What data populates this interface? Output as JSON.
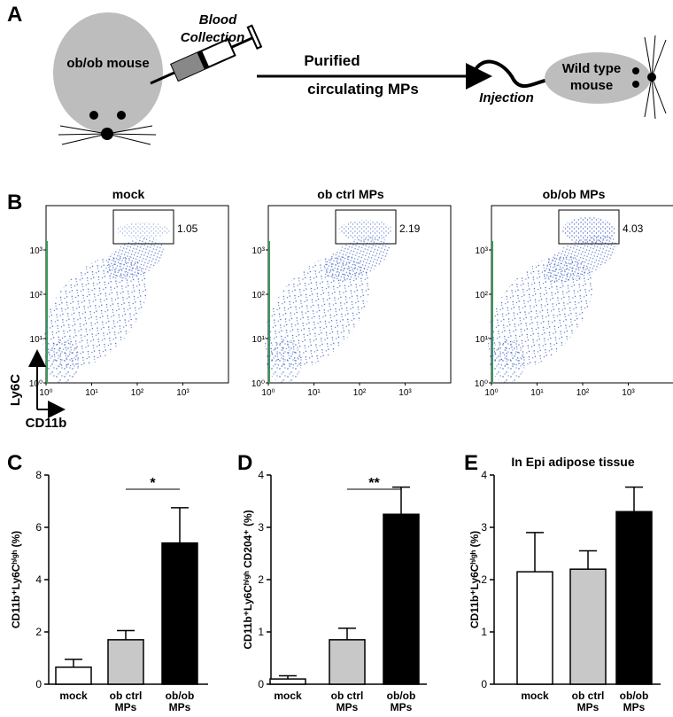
{
  "panel_labels": [
    "A",
    "B",
    "C",
    "D",
    "E"
  ],
  "diagram": {
    "donor": "ob/ob mouse",
    "collection": [
      "Blood",
      "Collection"
    ],
    "product": [
      "Purified",
      "circulating MPs"
    ],
    "injection": "Injection",
    "recipient": [
      "Wild type",
      "mouse"
    ]
  },
  "flow": {
    "x_label": "CD11b",
    "y_label": "Ly6C",
    "log": true,
    "xlim": [
      1,
      10000
    ],
    "ylim": [
      1,
      10000
    ],
    "xticks": [
      {
        "value": 1,
        "label": "10⁰"
      },
      {
        "value": 10,
        "label": "10¹"
      },
      {
        "value": 100,
        "label": "10²"
      },
      {
        "value": 1000,
        "label": "10³"
      }
    ],
    "yticks": [
      {
        "value": 1,
        "label": "10⁰"
      },
      {
        "value": 10,
        "label": "10¹"
      },
      {
        "value": 100,
        "label": "10²"
      },
      {
        "value": 1000,
        "label": "10³"
      }
    ],
    "plots": [
      {
        "title": "mock",
        "gate_percent": 1.05
      },
      {
        "title": "ob ctrl MPs",
        "gate_percent": 2.19
      },
      {
        "title": "ob/ob MPs",
        "gate_percent": 4.03
      }
    ]
  },
  "chart_data": [
    {
      "type": "bar",
      "y_label": "CD11b⁺Ly6Cʰⁱᵍʰ (%)",
      "categories": [
        [
          "mock"
        ],
        [
          "ob ctrl",
          "MPs"
        ],
        [
          "ob/ob",
          "MPs"
        ]
      ],
      "values": [
        0.65,
        1.7,
        5.4
      ],
      "errors": [
        0.3,
        0.35,
        1.35
      ],
      "colors": [
        "#ffffff",
        "#c8c8c8",
        "#000000"
      ],
      "ylim": [
        0,
        8
      ],
      "yticks": [
        0,
        2,
        4,
        6,
        8
      ],
      "significance": "*"
    },
    {
      "type": "bar",
      "y_label": "CD11b⁺Ly6Cʰⁱᵍʰ CD204⁺ (%)",
      "categories": [
        [
          "mock"
        ],
        [
          "ob ctrl",
          "MPs"
        ],
        [
          "ob/ob",
          "MPs"
        ]
      ],
      "values": [
        0.1,
        0.85,
        3.25
      ],
      "errors": [
        0.06,
        0.22,
        0.52
      ],
      "colors": [
        "#ffffff",
        "#c8c8c8",
        "#000000"
      ],
      "ylim": [
        0,
        4
      ],
      "yticks": [
        0,
        1,
        2,
        3,
        4
      ],
      "significance": "**"
    },
    {
      "type": "bar",
      "title": "In Epi adipose tissue",
      "y_label": "CD11b⁺Ly6Cʰⁱᵍʰ (%)",
      "categories": [
        [
          "mock"
        ],
        [
          "ob ctrl",
          "MPs"
        ],
        [
          "ob/ob",
          "MPs"
        ]
      ],
      "values": [
        2.15,
        2.2,
        3.3
      ],
      "errors": [
        0.75,
        0.35,
        0.47
      ],
      "colors": [
        "#ffffff",
        "#c8c8c8",
        "#000000"
      ],
      "ylim": [
        0,
        4
      ],
      "yticks": [
        0,
        1,
        2,
        3,
        4
      ]
    }
  ]
}
